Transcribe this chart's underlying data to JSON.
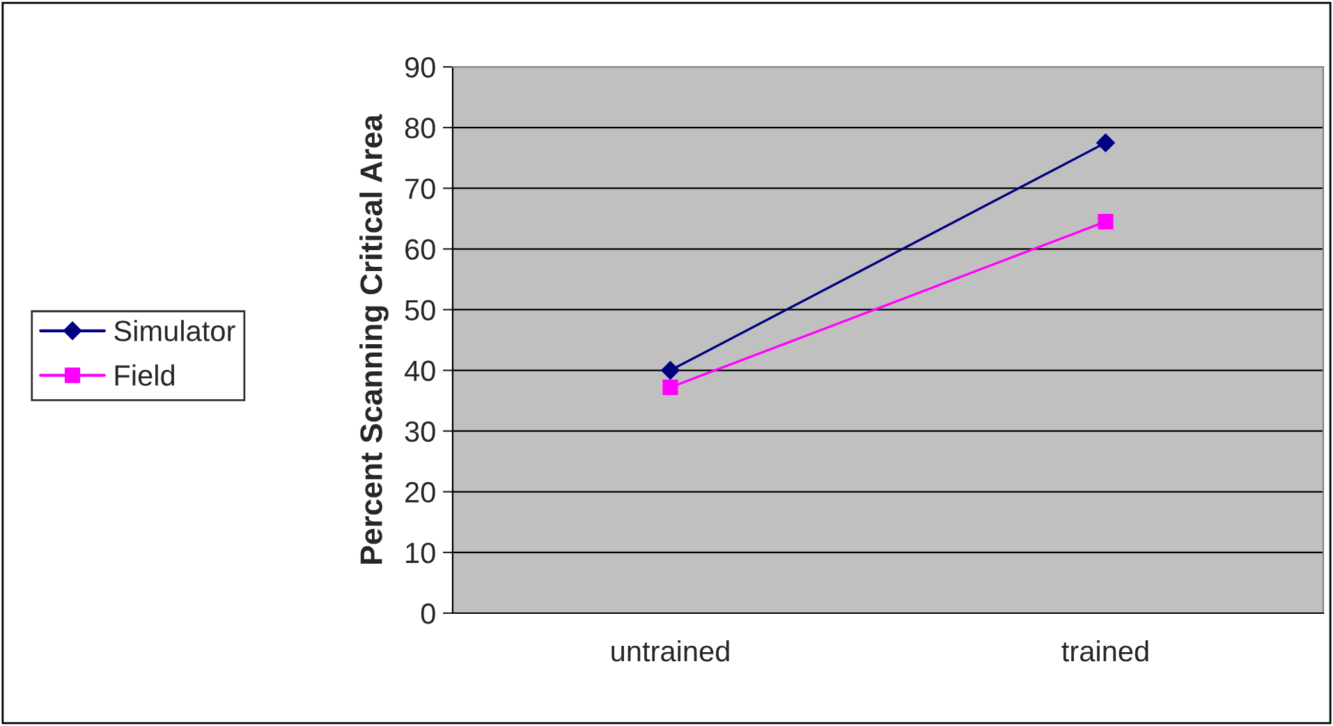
{
  "chart_data": {
    "type": "line",
    "ylabel": "Percent Scanning Critical Area",
    "categories": [
      "untrained",
      "trained"
    ],
    "series": [
      {
        "name": "Simulator",
        "color": "#000080",
        "values": [
          40,
          77.5
        ],
        "marker": "diamond"
      },
      {
        "name": "Field",
        "color": "#ff00ff",
        "values": [
          37.2,
          64.5
        ],
        "marker": "square"
      }
    ],
    "ylim": [
      0,
      90
    ],
    "yticks": [
      0,
      10,
      20,
      30,
      40,
      50,
      60,
      70,
      80,
      90
    ],
    "grid": "y",
    "legend": "left",
    "line_style": "solid"
  }
}
